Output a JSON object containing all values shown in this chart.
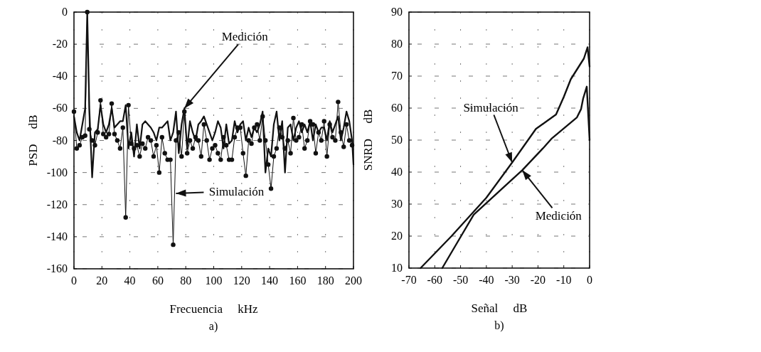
{
  "chart_data": [
    {
      "type": "line",
      "xlabel": "Frecuencia     kHz",
      "ylabel": "PSD     dB",
      "xlim": [
        0,
        200
      ],
      "ylim": [
        -160,
        0
      ],
      "xticks": [
        0,
        20,
        40,
        60,
        80,
        100,
        120,
        140,
        160,
        180,
        200
      ],
      "yticks": [
        0,
        -20,
        -40,
        -60,
        -80,
        -100,
        -120,
        -140,
        -160
      ],
      "grid": true,
      "annotations": [
        {
          "text": "Medición",
          "x": 79,
          "y": -60
        },
        {
          "text": "Simulación",
          "x": 73,
          "y": -113
        },
        "a)"
      ],
      "series": [
        {
          "color": "#111111",
          "marker": "none",
          "x": [
            0,
            2,
            4,
            6,
            8,
            9.5,
            11,
            13,
            15,
            17,
            19,
            21,
            23,
            25,
            27,
            29,
            31,
            33,
            35,
            37,
            39,
            41,
            43,
            45,
            47,
            49,
            51,
            53,
            55,
            57,
            59,
            61,
            63,
            65,
            67,
            69,
            71,
            73,
            75,
            77,
            79,
            81,
            83,
            85,
            87,
            89,
            91,
            93,
            95,
            97,
            99,
            101,
            103,
            105,
            107,
            109,
            111,
            113,
            115,
            117,
            119,
            121,
            123,
            125,
            127,
            129,
            131,
            133,
            135,
            137,
            139,
            141,
            143,
            145,
            147,
            149,
            151,
            153,
            155,
            157,
            159,
            161,
            163,
            165,
            167,
            169,
            171,
            173,
            175,
            177,
            179,
            181,
            183,
            185,
            187,
            189,
            191,
            193,
            195,
            197,
            199,
            200
          ],
          "values": [
            -65,
            -75,
            -80,
            -70,
            -60,
            0,
            -60,
            -103,
            -75,
            -73,
            -58,
            -70,
            -75,
            -70,
            -60,
            -72,
            -70,
            -68,
            -68,
            -58,
            -85,
            -75,
            -90,
            -70,
            -85,
            -70,
            -68,
            -70,
            -72,
            -75,
            -80,
            -72,
            -72,
            -70,
            -68,
            -80,
            -75,
            -62,
            -88,
            -70,
            -60,
            -85,
            -68,
            -75,
            -80,
            -70,
            -68,
            -65,
            -70,
            -75,
            -80,
            -75,
            -68,
            -72,
            -85,
            -70,
            -82,
            -80,
            -68,
            -75,
            -70,
            -68,
            -80,
            -72,
            -78,
            -72,
            -75,
            -70,
            -62,
            -100,
            -85,
            -90,
            -70,
            -62,
            -80,
            -68,
            -100,
            -72,
            -70,
            -80,
            -72,
            -68,
            -75,
            -70,
            -75,
            -68,
            -80,
            -70,
            -75,
            -72,
            -72,
            -80,
            -68,
            -75,
            -70,
            -65,
            -80,
            -72,
            -62,
            -68,
            -80,
            -95
          ]
        },
        {
          "color": "#111111",
          "marker": "circle",
          "x": [
            0,
            2,
            4,
            6,
            8,
            9.5,
            11,
            13,
            15,
            17,
            19,
            21,
            23,
            25,
            27,
            29,
            31,
            33,
            35,
            37,
            39,
            41,
            43,
            45,
            47,
            49,
            51,
            53,
            55,
            57,
            59,
            61,
            63,
            65,
            67,
            69,
            71,
            73,
            75,
            77,
            79,
            81,
            83,
            85,
            87,
            89,
            91,
            93,
            95,
            97,
            99,
            101,
            103,
            105,
            107,
            109,
            111,
            113,
            115,
            117,
            119,
            121,
            123,
            125,
            127,
            129,
            131,
            133,
            135,
            137,
            139,
            141,
            143,
            145,
            147,
            149,
            151,
            153,
            155,
            157,
            159,
            161,
            163,
            165,
            167,
            169,
            171,
            173,
            175,
            177,
            179,
            181,
            183,
            185,
            187,
            189,
            191,
            193,
            195,
            197,
            199
          ],
          "values": [
            -62,
            -85,
            -83,
            -78,
            -77,
            0,
            -73,
            -80,
            -83,
            -75,
            -55,
            -76,
            -78,
            -76,
            -57,
            -76,
            -80,
            -85,
            -72,
            -128,
            -58,
            -82,
            -85,
            -83,
            -90,
            -82,
            -85,
            -78,
            -80,
            -90,
            -83,
            -100,
            -78,
            -88,
            -92,
            -92,
            -145,
            -80,
            -75,
            -90,
            -62,
            -88,
            -80,
            -85,
            -78,
            -80,
            -90,
            -70,
            -80,
            -92,
            -85,
            -83,
            -88,
            -92,
            -78,
            -83,
            -92,
            -92,
            -78,
            -72,
            -72,
            -88,
            -102,
            -80,
            -82,
            -72,
            -70,
            -80,
            -65,
            -80,
            -95,
            -110,
            -90,
            -85,
            -72,
            -78,
            -85,
            -80,
            -88,
            -66,
            -80,
            -78,
            -70,
            -85,
            -80,
            -68,
            -70,
            -88,
            -75,
            -80,
            -68,
            -90,
            -70,
            -78,
            -80,
            -56,
            -75,
            -84,
            -70,
            -80,
            -83
          ]
        }
      ]
    },
    {
      "type": "line",
      "xlabel": "Señal     dB",
      "ylabel": "SNRD     dB",
      "xlim": [
        -70,
        0
      ],
      "ylim": [
        10,
        90
      ],
      "xticks": [
        -70,
        -60,
        -50,
        -40,
        -30,
        -20,
        -10,
        0
      ],
      "yticks": [
        10,
        20,
        30,
        40,
        50,
        60,
        70,
        80,
        90
      ],
      "grid": true,
      "annotations": [
        {
          "text": "Simulación",
          "x": -30,
          "y": 43
        },
        {
          "text": "Medición",
          "x": -26.1,
          "y": 40.6
        },
        "b)"
      ],
      "series": [
        {
          "color": "#111111",
          "marker": "none",
          "x": [
            -65.5,
            -53.5,
            -40,
            -30,
            -20.8,
            -13,
            -10,
            -7.3,
            -2.2,
            -0.8,
            0
          ],
          "values": [
            10,
            20,
            32,
            43,
            53.5,
            58,
            63.5,
            69,
            75.5,
            79,
            73
          ]
        },
        {
          "color": "#111111",
          "marker": "none",
          "x": [
            -57.1,
            -49.8,
            -44.9,
            -26.1,
            -18.1,
            -14.8,
            -4.9,
            -3.3,
            -2.5,
            -1.1,
            0
          ],
          "values": [
            10,
            20,
            26.7,
            40.6,
            47.4,
            50.4,
            57.1,
            59.7,
            63,
            66.7,
            50
          ]
        }
      ]
    }
  ]
}
